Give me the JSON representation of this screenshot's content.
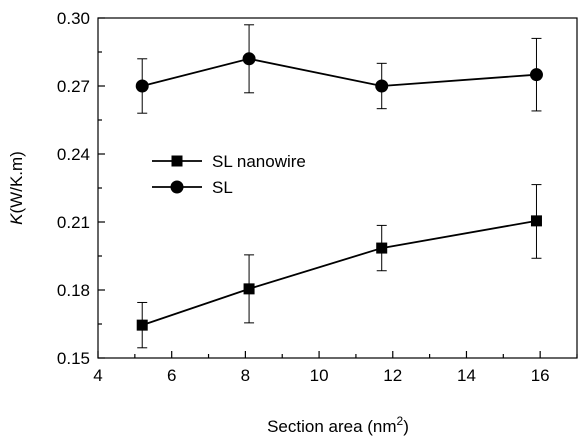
{
  "chart_data": {
    "type": "line",
    "xlabel": "Section area (nm",
    "xlabel_sup": "2",
    "xlabel_end": ")",
    "ylabel_italic": "K",
    "ylabel_rest": "(W/K.m)",
    "xlim": [
      4,
      17
    ],
    "ylim": [
      0.15,
      0.3
    ],
    "xticks": [
      4,
      6,
      8,
      10,
      12,
      14,
      16
    ],
    "xtick_labels": [
      "4",
      "6",
      "8",
      "10",
      "12",
      "14",
      "16"
    ],
    "yticks": [
      0.15,
      0.18,
      0.21,
      0.24,
      0.27,
      0.3
    ],
    "ytick_labels": [
      "0.15",
      "0.18",
      "0.21",
      "0.24",
      "0.27",
      "0.30"
    ],
    "grid": false,
    "legend_position": "center-left",
    "series": [
      {
        "name": "SL nanowire",
        "marker": "square",
        "x": [
          5.2,
          8.1,
          11.7,
          15.9
        ],
        "y": [
          0.1645,
          0.1805,
          0.1985,
          0.2105
        ],
        "err_low": [
          0.1545,
          0.1655,
          0.1885,
          0.194
        ],
        "err_high": [
          0.1745,
          0.1955,
          0.2085,
          0.2265
        ]
      },
      {
        "name": "SL",
        "marker": "circle",
        "x": [
          5.2,
          8.1,
          11.7,
          15.9
        ],
        "y": [
          0.27,
          0.282,
          0.27,
          0.275
        ],
        "err_low": [
          0.258,
          0.267,
          0.26,
          0.259
        ],
        "err_high": [
          0.282,
          0.297,
          0.28,
          0.291
        ]
      }
    ]
  }
}
